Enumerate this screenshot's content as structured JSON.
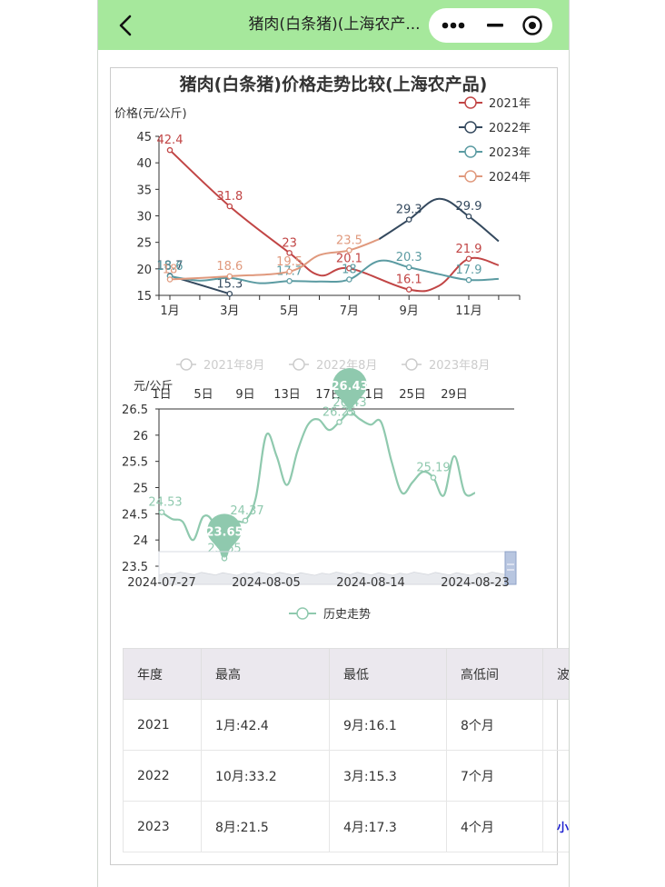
{
  "navbar": {
    "title": "猪肉(白条猪)(上海农产...",
    "bg": "#a6e89c",
    "back_icon": "chevron-left-icon",
    "more_icon": "more-dots-icon",
    "minimize_icon": "minimize-icon",
    "close_icon": "target-circle-icon"
  },
  "chart_data": [
    {
      "type": "line",
      "title": "猪肉(白条猪)价格走势比较(上海农产品)",
      "ylabel": "价格(元/公斤)",
      "xlabel": "",
      "ylim": [
        15,
        45
      ],
      "yticks": [
        "15",
        "20",
        "25",
        "30",
        "35",
        "40",
        "45"
      ],
      "x_tick_labels": [
        "1月",
        "3月",
        "5月",
        "7月",
        "9月",
        "11月"
      ],
      "legend_position": "top-right",
      "series": [
        {
          "name": "2021年",
          "color": "#c14545",
          "x": [
            1,
            3,
            5,
            6,
            7,
            9,
            10,
            11,
            12
          ],
          "values": [
            42.4,
            31.8,
            23,
            18.8,
            20.1,
            16.1,
            16.8,
            21.9,
            20.7
          ],
          "labeled": [
            [
              1,
              42.4,
              "42.4"
            ],
            [
              3,
              31.8,
              "31.8"
            ],
            [
              5,
              23,
              "23"
            ],
            [
              7,
              20.1,
              "20.1"
            ],
            [
              9,
              16.1,
              "16.1"
            ],
            [
              11,
              21.9,
              "21.9"
            ]
          ]
        },
        {
          "name": "2022年",
          "color": "#34495e",
          "x": [
            1,
            3,
            8,
            9,
            10,
            11,
            12
          ],
          "values": [
            18.7,
            15.3,
            25.6,
            29.3,
            33.2,
            29.9,
            25.2
          ],
          "segments": [
            [
              0,
              1
            ],
            [
              2,
              6
            ]
          ],
          "labeled": [
            [
              1,
              18.7,
              "18.7"
            ],
            [
              3,
              15.3,
              "15.3"
            ],
            [
              9,
              29.3,
              "29.3"
            ],
            [
              11,
              29.9,
              "29.9"
            ]
          ]
        },
        {
          "name": "2023年",
          "color": "#5b9ba2",
          "x": [
            1,
            2,
            3,
            4,
            5,
            6,
            7,
            8,
            9,
            10,
            11,
            12
          ],
          "values": [
            18.6,
            17.8,
            18.3,
            17.3,
            17.7,
            17.6,
            18,
            21.5,
            20.3,
            19,
            17.9,
            18.1
          ],
          "labeled": [
            [
              1,
              18.6,
              "18.6"
            ],
            [
              5,
              17.7,
              "17.7"
            ],
            [
              7,
              18,
              "18"
            ],
            [
              9,
              20.3,
              "20.3"
            ],
            [
              11,
              17.9,
              "17.9"
            ]
          ]
        },
        {
          "name": "2024年",
          "color": "#e0997d",
          "x": [
            1,
            3,
            5,
            6,
            7,
            8
          ],
          "values": [
            18,
            18.6,
            19.5,
            22.6,
            23.5,
            25.6
          ],
          "labeled": [
            [
              1,
              18,
              "18"
            ],
            [
              3,
              18.6,
              "18.6"
            ],
            [
              5,
              19.5,
              "19.5"
            ],
            [
              7,
              23.5,
              "23.5"
            ]
          ]
        }
      ]
    },
    {
      "type": "line",
      "title": "",
      "ylabel": "元/公斤",
      "ylim": [
        23.5,
        26.5
      ],
      "yticks": [
        "23.5",
        "24",
        "24.5",
        "25",
        "25.5",
        "26",
        "26.5"
      ],
      "top_tick_labels": [
        "1日",
        "5日",
        "9日",
        "13日",
        "17日",
        "21日",
        "25日",
        "29日"
      ],
      "bottom_tick_labels": [
        "2024-07-27",
        "2024-08-05",
        "2024-08-14",
        "2024-08-23"
      ],
      "legend_top": [
        "2021年8月",
        "2022年8月",
        "2023年8月"
      ],
      "series": [
        {
          "name": "历史走势",
          "color": "#8fc9ae",
          "x": [
            0,
            1,
            2,
            3,
            4,
            5,
            6,
            7,
            8,
            9,
            10,
            11,
            12,
            13,
            14,
            15,
            16,
            17,
            18,
            19,
            20,
            21,
            22,
            23,
            24,
            25,
            26,
            27,
            28,
            29,
            30,
            31,
            32,
            33
          ],
          "values": [
            24.53,
            24.4,
            24.35,
            24.0,
            24.45,
            24.3,
            23.65,
            24.3,
            24.37,
            24.8,
            26.0,
            25.6,
            25.05,
            25.7,
            26.2,
            26.3,
            26.1,
            26.25,
            26.43,
            26.3,
            26.2,
            26.25,
            25.5,
            24.9,
            25.1,
            25.3,
            25.19,
            24.85,
            25.6,
            24.9,
            24.9,
            24.9,
            24.9,
            24.9
          ],
          "labeled": [
            [
              0,
              24.53,
              "24.53"
            ],
            [
              6,
              23.65,
              "23.65"
            ],
            [
              8,
              24.37,
              "24.37"
            ],
            [
              17,
              26.25,
              "26.25"
            ],
            [
              18,
              26.43,
              "26.43"
            ],
            [
              26,
              25.19,
              "25.19"
            ]
          ]
        }
      ],
      "markers": {
        "max": {
          "value": "26.43"
        },
        "min": {
          "value": "23.65"
        }
      },
      "legend_bottom": "历史走势"
    }
  ],
  "table": {
    "headers": [
      "年度",
      "最高",
      "最低",
      "高低间",
      "波动"
    ],
    "rows": [
      [
        "2021",
        "1月:42.4",
        "9月:16.1",
        "8个月",
        ""
      ],
      [
        "2022",
        "10月:33.2",
        "3月:15.3",
        "7个月",
        ""
      ],
      [
        "2023",
        "8月:21.5",
        "4月:17.3",
        "4个月",
        "小"
      ]
    ]
  }
}
